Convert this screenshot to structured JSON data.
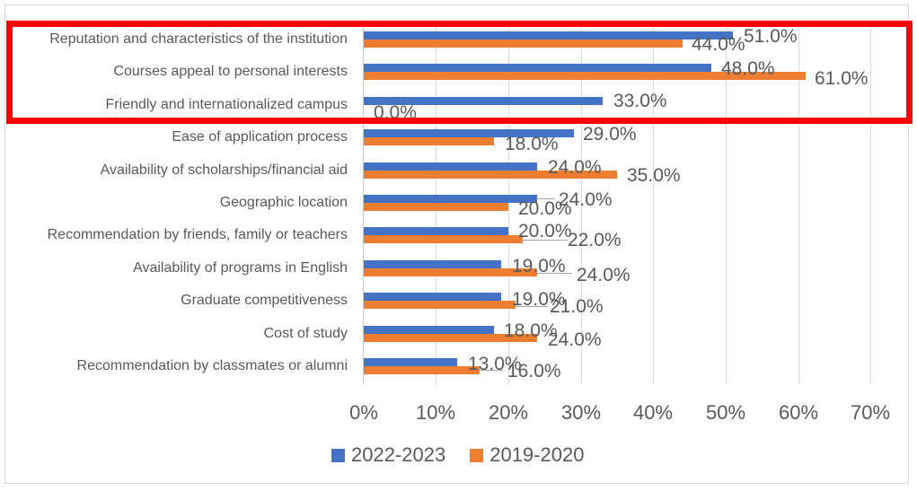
{
  "chart_data": {
    "type": "bar",
    "orientation": "horizontal",
    "title": "",
    "xlabel": "",
    "ylabel": "",
    "xlim": [
      0,
      70
    ],
    "xticks": [
      "0%",
      "10%",
      "20%",
      "30%",
      "40%",
      "50%",
      "60%",
      "70%"
    ],
    "grid": true,
    "legend_position": "bottom",
    "categories": [
      "Reputation and characteristics of the institution",
      "Courses appeal to personal interests",
      "Friendly and internationalized campus",
      "Ease of application process",
      "Availability of scholarships/financial aid",
      "Geographic location",
      "Recommendation by friends, family or teachers",
      "Availability of programs in English",
      "Graduate competitiveness",
      "Cost of study",
      "Recommendation by classmates or alumni"
    ],
    "series": [
      {
        "name": "2022-2023",
        "color": "#4472C4",
        "values": [
          51,
          48,
          33,
          29,
          24,
          24,
          20,
          19,
          19,
          18,
          13
        ],
        "labels": [
          "51.0%",
          "48.0%",
          "33.0%",
          "29.0%",
          "24.0%",
          "24.0%",
          "20.0%",
          "19.0%",
          "19.0%",
          "18.0%",
          "13.0%"
        ]
      },
      {
        "name": "2019-2020",
        "color": "#ED7D31",
        "values": [
          44,
          61,
          0,
          18,
          35,
          20,
          22,
          24,
          21,
          24,
          16
        ],
        "labels": [
          "44.0%",
          "61.0%",
          "0.0%",
          "18.0%",
          "35.0%",
          "20.0%",
          "22.0%",
          "24.0%",
          "21.0%",
          "24.0%",
          "16.0%"
        ]
      }
    ],
    "highlight": {
      "categories": [
        "Reputation and characteristics of the institution",
        "Courses appeal to personal interests",
        "Friendly and internationalized campus"
      ],
      "color": "#FF0000"
    }
  }
}
